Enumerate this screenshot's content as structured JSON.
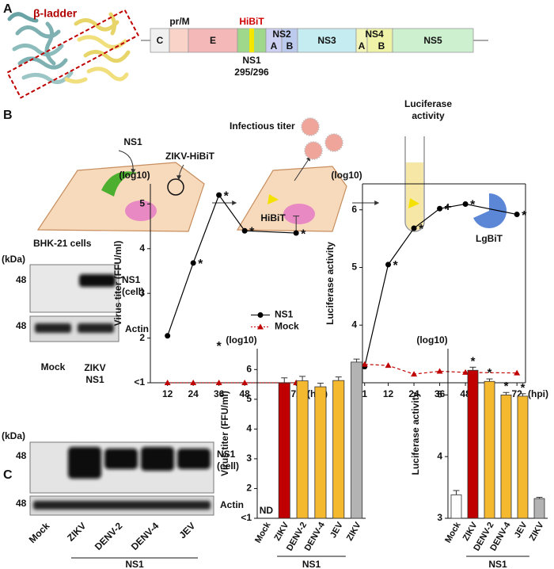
{
  "panel_labels": [
    "A",
    "B",
    "C"
  ],
  "panel_a": {
    "beta_ladder": "β-ladder",
    "c": "C",
    "prm": "pr/M",
    "e": "E",
    "hibit": "HiBiT",
    "ns1": "NS1",
    "ns1_site": "295/296",
    "ns2": "NS2",
    "ns2a": "A",
    "ns2b": "B",
    "ns3": "NS3",
    "ns4": "NS4",
    "ns4a": "A",
    "ns4b": "B",
    "ns5": "NS5"
  },
  "schematic_b": {
    "ns1": "NS1",
    "virus": "ZIKV-HiBiT",
    "titer": "Infectious titer",
    "hibit": "HiBiT",
    "luciferase": "Luciferase activity",
    "plus": "+",
    "lgbit": "LgBiT",
    "cells": "BHK-21 cells"
  },
  "blot_b": {
    "unit": "(kDa)",
    "marker_top": "48",
    "marker_bottom": "48",
    "row_top": "NS1 (cell)",
    "row_bottom": "Actin",
    "lanes": [
      "Mock",
      "ZIKV NS1"
    ]
  },
  "blot_c": {
    "unit": "(kDa)",
    "marker_top": "48",
    "marker_bottom": "48",
    "row_top": "NS1 (cell)",
    "row_bottom": "Actin",
    "lanes": [
      "Mock",
      "ZIKV",
      "DENV-2",
      "DENV-4",
      "JEV"
    ],
    "group": "NS1"
  },
  "chart_data": [
    {
      "type": "line",
      "y_unit": "(log10)",
      "ylabel": "Virus titer (FFU/ml)",
      "x_unit": "(hpi)",
      "x": [
        12,
        24,
        36,
        48,
        72
      ],
      "xlim": [
        4,
        76
      ],
      "xticks": [
        12,
        24,
        36,
        48,
        72
      ],
      "ylim": [
        1,
        5.45
      ],
      "yticks": [
        {
          "value": 1,
          "label": "<1"
        },
        2,
        3,
        4,
        5
      ],
      "frame": false,
      "legend": "center-right",
      "series": [
        {
          "name": "NS1",
          "color": "#000000",
          "marker": "circle",
          "line": "solid",
          "values": [
            2.05,
            3.68,
            5.2,
            4.4,
            4.35
          ],
          "errors": [
            null,
            null,
            null,
            null,
            0.38
          ],
          "markers": [
            null,
            "*",
            "*",
            "*",
            "*"
          ]
        },
        {
          "name": "Mock",
          "color": "#c00000",
          "marker": "triangle",
          "line": "dotted",
          "values": [
            1,
            1,
            1,
            1,
            1
          ]
        }
      ],
      "annotations": [
        {
          "text": "*",
          "x": 36,
          "y": 1.8
        }
      ]
    },
    {
      "type": "line",
      "y_unit": "(log10)",
      "ylabel": "Luciferase activity",
      "x_unit": "(hpi)",
      "x": [
        1,
        12,
        24,
        36,
        48,
        72
      ],
      "xlim": [
        0,
        76
      ],
      "xticks": [
        1,
        12,
        24,
        36,
        48,
        72
      ],
      "ylim": [
        3,
        6.45
      ],
      "yticks": [
        3,
        4,
        5,
        6
      ],
      "frame": true,
      "series": [
        {
          "name": "NS1",
          "color": "#000000",
          "marker": "circle",
          "line": "solid",
          "values": [
            3.28,
            5.05,
            5.68,
            6.02,
            6.1,
            5.92
          ],
          "markers": [
            null,
            "*",
            "*",
            "*",
            "*",
            "*"
          ]
        },
        {
          "name": "Mock",
          "color": "#c00000",
          "marker": "triangle",
          "line": "dashed",
          "values": [
            3.32,
            3.3,
            3.15,
            3.2,
            3.18,
            3.17
          ]
        }
      ]
    },
    {
      "type": "bar",
      "y_unit": "(log10)",
      "ylabel": "Virus titer (FFU/ml)",
      "categories": [
        "Mock",
        "ZIKV",
        "DENV-2",
        "DENV-4",
        "JEV",
        "ZIKV"
      ],
      "values": [
        null,
        5.55,
        5.62,
        5.42,
        5.63,
        6.25
      ],
      "errors": [
        null,
        0.17,
        0.15,
        0.12,
        0.12,
        0.1
      ],
      "value_labels": [
        "ND",
        null,
        null,
        null,
        null,
        null
      ],
      "colors": [
        "#ffffff",
        "#c00000",
        "#f4b92e",
        "#f4b92e",
        "#f4b92e",
        "#b3b3b3"
      ],
      "ylim": [
        1,
        6.7
      ],
      "yticks": [
        {
          "value": 1,
          "label": "<1"
        },
        2,
        3,
        4,
        5,
        6
      ],
      "frame": false,
      "group": {
        "label": "NS1",
        "first": 1,
        "last": 4
      }
    },
    {
      "type": "bar",
      "y_unit": "(log10)",
      "ylabel": "Luciferase activity",
      "categories": [
        "Mock",
        "ZIKV",
        "DENV-2",
        "DENV-4",
        "JEV",
        "ZIKV"
      ],
      "values": [
        3.38,
        5.4,
        5.22,
        5.0,
        4.98,
        3.32
      ],
      "errors": [
        0.07,
        0.05,
        0.04,
        0.04,
        0.04,
        0.02
      ],
      "markers": [
        null,
        "*",
        "*",
        "*",
        "*",
        null
      ],
      "colors": [
        "#ffffff",
        "#c00000",
        "#f4b92e",
        "#f4b92e",
        "#f4b92e",
        "#b3b3b3"
      ],
      "ylim": [
        3,
        5.75
      ],
      "yticks": [
        3,
        4,
        5
      ],
      "frame": false,
      "group": {
        "label": "NS1",
        "first": 1,
        "last": 4
      }
    }
  ]
}
